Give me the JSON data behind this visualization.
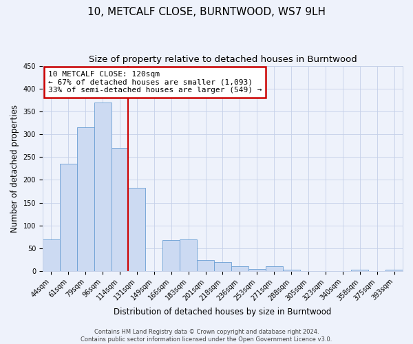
{
  "title": "10, METCALF CLOSE, BURNTWOOD, WS7 9LH",
  "subtitle": "Size of property relative to detached houses in Burntwood",
  "xlabel": "Distribution of detached houses by size in Burntwood",
  "ylabel": "Number of detached properties",
  "categories": [
    "44sqm",
    "61sqm",
    "79sqm",
    "96sqm",
    "114sqm",
    "131sqm",
    "149sqm",
    "166sqm",
    "183sqm",
    "201sqm",
    "218sqm",
    "236sqm",
    "253sqm",
    "271sqm",
    "288sqm",
    "305sqm",
    "323sqm",
    "340sqm",
    "358sqm",
    "375sqm",
    "393sqm"
  ],
  "values": [
    70,
    235,
    315,
    370,
    270,
    183,
    0,
    68,
    70,
    24,
    20,
    10,
    5,
    11,
    3,
    0,
    0,
    0,
    3,
    0,
    3
  ],
  "bar_color": "#ccdaf2",
  "bar_edge_color": "#6b9fd4",
  "background_color": "#eef2fb",
  "grid_color": "#c5d0e8",
  "vline_x": 4.5,
  "vline_color": "#cc0000",
  "ylim": [
    0,
    450
  ],
  "yticks": [
    0,
    50,
    100,
    150,
    200,
    250,
    300,
    350,
    400,
    450
  ],
  "annotation_title": "10 METCALF CLOSE: 120sqm",
  "annotation_line1": "← 67% of detached houses are smaller (1,093)",
  "annotation_line2": "33% of semi-detached houses are larger (549) →",
  "annotation_box_color": "#ffffff",
  "annotation_box_edge": "#cc0000",
  "footer_line1": "Contains HM Land Registry data © Crown copyright and database right 2024.",
  "footer_line2": "Contains public sector information licensed under the Open Government Licence v3.0.",
  "title_fontsize": 11,
  "subtitle_fontsize": 9.5,
  "axis_label_fontsize": 8.5,
  "tick_fontsize": 7,
  "annotation_fontsize": 8,
  "footer_fontsize": 6
}
